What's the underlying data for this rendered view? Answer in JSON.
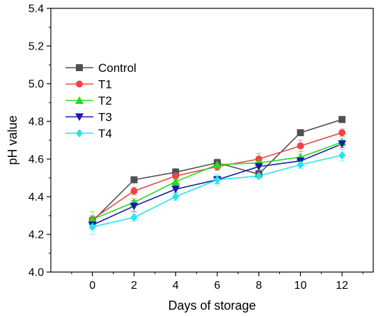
{
  "chart_data": {
    "type": "line",
    "xlabel": "Days of storage",
    "ylabel": "pH value",
    "x": [
      0,
      2,
      4,
      6,
      8,
      10,
      12
    ],
    "xlim": [
      -2,
      13.5
    ],
    "xticks": [
      0,
      2,
      4,
      6,
      8,
      10,
      12
    ],
    "ylim": [
      4.0,
      5.4
    ],
    "yticks": [
      4.0,
      4.2,
      4.4,
      4.6,
      4.8,
      5.0,
      5.2,
      5.4
    ],
    "grid": false,
    "legend_position": "top-left",
    "series": [
      {
        "name": "Control",
        "color": "#505050",
        "marker": "square",
        "values": [
          4.27,
          4.49,
          4.53,
          4.58,
          4.52,
          4.74,
          4.81
        ],
        "errors": [
          0.02,
          0.015,
          0.02,
          0.02,
          0.02,
          0.015,
          0.015
        ]
      },
      {
        "name": "T1",
        "color": "#ee4444",
        "marker": "circle",
        "values": [
          4.28,
          4.43,
          4.51,
          4.56,
          4.6,
          4.67,
          4.74
        ],
        "errors": [
          0.02,
          0.02,
          0.02,
          0.02,
          0.03,
          0.03,
          0.02
        ]
      },
      {
        "name": "T2",
        "color": "#22dd22",
        "marker": "triangle-up",
        "values": [
          4.28,
          4.37,
          4.48,
          4.57,
          4.58,
          4.61,
          4.69
        ],
        "errors": [
          0.04,
          0.02,
          0.02,
          0.03,
          0.02,
          0.02,
          0.02
        ]
      },
      {
        "name": "T3",
        "color": "#1a1aaa",
        "marker": "triangle-down",
        "values": [
          4.25,
          4.35,
          4.44,
          4.49,
          4.56,
          4.59,
          4.68
        ],
        "errors": [
          0.02,
          0.03,
          0.02,
          0.02,
          0.02,
          0.02,
          0.02
        ]
      },
      {
        "name": "T4",
        "color": "#22e5ee",
        "marker": "diamond",
        "values": [
          4.24,
          4.29,
          4.4,
          4.49,
          4.51,
          4.57,
          4.62
        ],
        "errors": [
          0.04,
          0.02,
          0.02,
          0.03,
          0.02,
          0.02,
          0.03
        ]
      }
    ]
  }
}
